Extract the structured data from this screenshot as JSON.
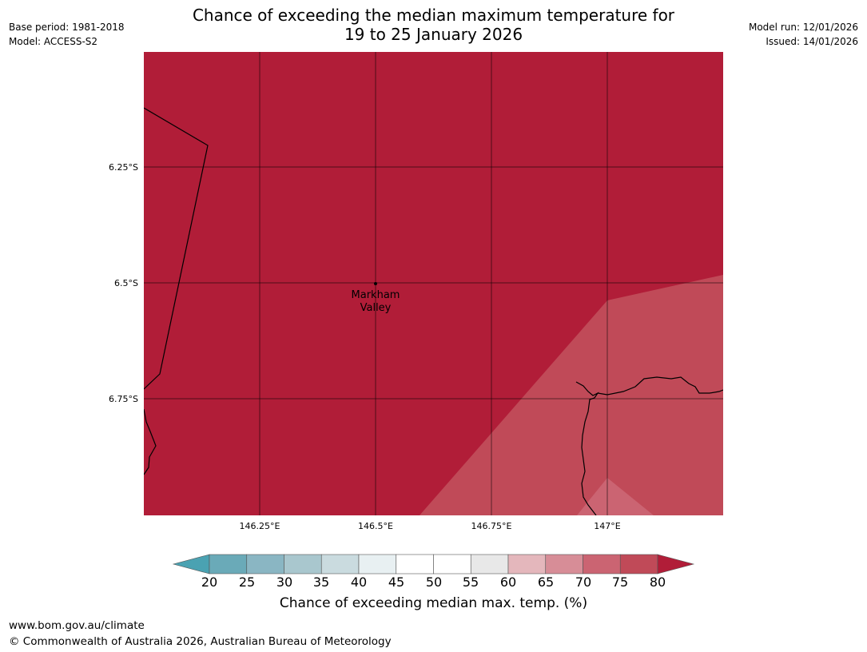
{
  "header": {
    "base_period": "Base period: 1981-2018",
    "model": "Model: ACCESS-S2",
    "title_line1": "Chance of exceeding the median maximum temperature for",
    "title_line2": "19 to 25 January 2026",
    "model_run": "Model run: 12/01/2026",
    "issued": "Issued: 14/01/2026"
  },
  "map": {
    "lat_labels": [
      "6.25°S",
      "6.5°S",
      "6.75°S"
    ],
    "lon_labels": [
      "146.25°E",
      "146.5°E",
      "146.75°E",
      "147°E"
    ],
    "place": {
      "name_line1": "Markham",
      "name_line2": "Valley",
      "lon": 146.5,
      "lat": -6.5
    },
    "regions": [
      {
        "category": "80+",
        "color": "#b11d38"
      },
      {
        "category": "75-80",
        "color": "#c04a58"
      },
      {
        "category": "70-75",
        "color": "#cb6472"
      }
    ]
  },
  "colorbar": {
    "title": "Chance of exceeding median max. temp. (%)",
    "ticks": [
      "20",
      "25",
      "30",
      "35",
      "40",
      "45",
      "50",
      "55",
      "60",
      "65",
      "70",
      "75",
      "80"
    ],
    "low_extend_color": "#4aa2b2",
    "high_extend_color": "#b11d38",
    "colors": [
      "#6aaab8",
      "#8ab6c3",
      "#a9c7ce",
      "#cadbdf",
      "#e8f0f2",
      "#ffffff",
      "#ffffff",
      "#e8e8e8",
      "#e4b7bc",
      "#d78d97",
      "#cb6472",
      "#c04a58"
    ]
  },
  "footer": {
    "url": "www.bom.gov.au/climate",
    "copyright": "© Commonwealth of Australia 2026, Australian Bureau of Meteorology"
  }
}
